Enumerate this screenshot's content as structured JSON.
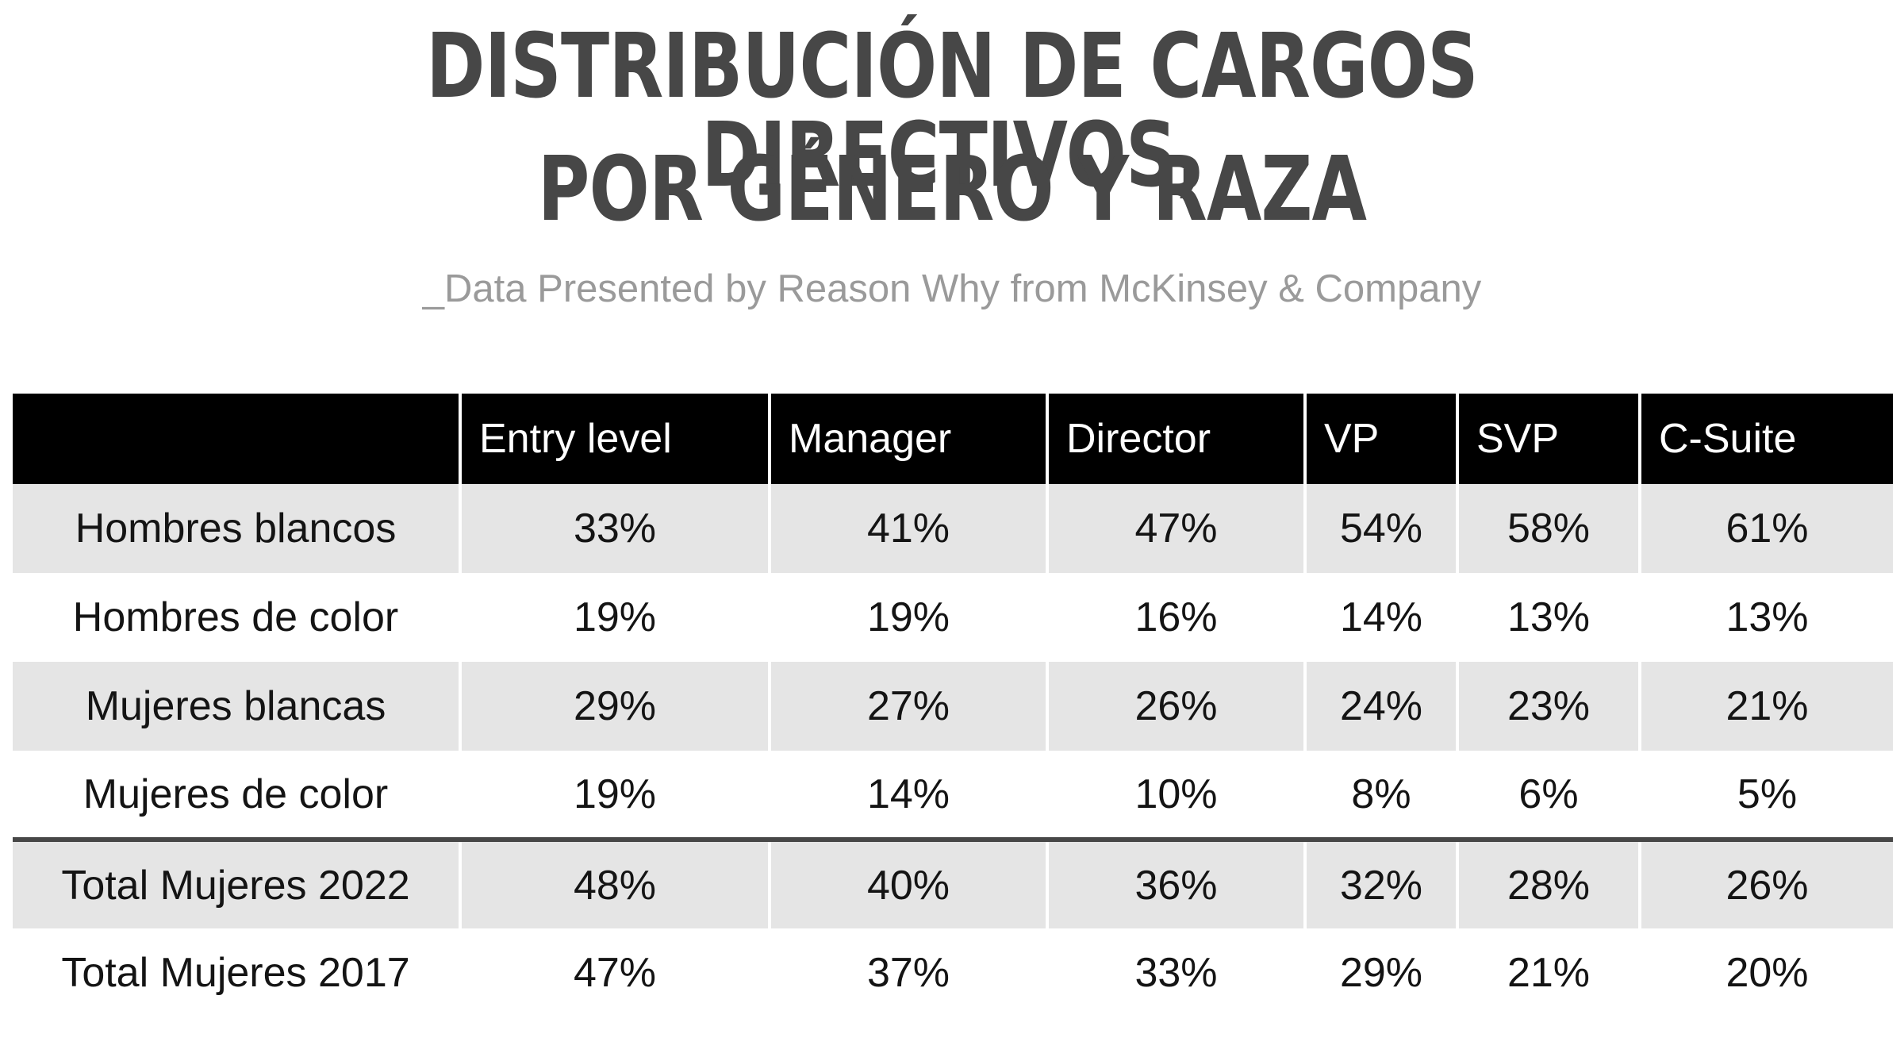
{
  "title_line1": "DISTRIBUCIÓN DE CARGOS DIRECTIVOS,",
  "title_line2": "POR GÉNERO Y RAZA",
  "subtitle": "_Data Presented by Reason Why from McKinsey & Company",
  "colors": {
    "title": "#474747",
    "subtitle": "#9a9a9a",
    "header_bg": "#000000",
    "header_text": "#ffffff",
    "shaded_row": "#e5e5e5",
    "separator": "#474747"
  },
  "chart_data": {
    "type": "table",
    "columns": [
      "Entry level",
      "Manager",
      "Director",
      "VP",
      "SVP",
      "C-Suite"
    ],
    "rows": [
      {
        "label": "Hombres blancos",
        "values": [
          "33%",
          "41%",
          "47%",
          "54%",
          "58%",
          "61%"
        ]
      },
      {
        "label": "Hombres de color",
        "values": [
          "19%",
          "19%",
          "16%",
          "14%",
          "13%",
          "13%"
        ]
      },
      {
        "label": "Mujeres blancas",
        "values": [
          "29%",
          "27%",
          "26%",
          "24%",
          "23%",
          "21%"
        ]
      },
      {
        "label": "Mujeres de color",
        "values": [
          "19%",
          "14%",
          "10%",
          "8%",
          "6%",
          "5%"
        ]
      },
      {
        "label": "Total Mujeres 2022",
        "values": [
          "48%",
          "40%",
          "36%",
          "32%",
          "28%",
          "26%"
        ]
      },
      {
        "label": "Total Mujeres 2017",
        "values": [
          "47%",
          "37%",
          "33%",
          "29%",
          "21%",
          "20%"
        ]
      }
    ]
  }
}
